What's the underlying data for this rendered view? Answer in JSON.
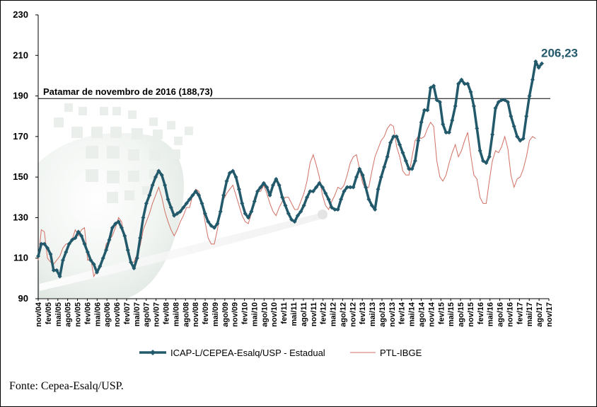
{
  "chart_data": {
    "type": "line",
    "ylim": [
      90,
      230
    ],
    "yticks": [
      90,
      110,
      130,
      150,
      170,
      190,
      210,
      230
    ],
    "x_tick_labels": [
      "nov/04",
      "fev/05",
      "mai/05",
      "ago/05",
      "nov/05",
      "fev/06",
      "mai/06",
      "ago/06",
      "nov/06",
      "fev/07",
      "mai/07",
      "ago/07",
      "nov/07",
      "fev/08",
      "mai/08",
      "ago/08",
      "nov/08",
      "fev/09",
      "mai/09",
      "ago/09",
      "nov/09",
      "fev/10",
      "mai/10",
      "ago/10",
      "nov/10",
      "fev/11",
      "mai/11",
      "ago/11",
      "nov/11",
      "fev/12",
      "mai/12",
      "ago/12",
      "nov/12",
      "fev/13",
      "mai/13",
      "ago/13",
      "nov/13",
      "fev/14",
      "mai/14",
      "ago/14",
      "nov/14",
      "fev/15",
      "mai/15",
      "ago/15",
      "nov/15",
      "fev/16",
      "mai/16",
      "ago/16",
      "nov/16",
      "fev/17",
      "mai/17",
      "ago/17",
      "nov/17"
    ],
    "reference_line": {
      "label": "Patamar de novembro de 2016 (188,73)",
      "value": 188.73
    },
    "end_label": "206,23",
    "grid": false,
    "legend_position": "bottom",
    "series": [
      {
        "name": "ICAP-L/CEPEA-Esalq/USP - Estadual",
        "color": "#22596b",
        "values": [
          111,
          117,
          117,
          115,
          112,
          104,
          104,
          101,
          109,
          113,
          117,
          119,
          120,
          123,
          121,
          117,
          113,
          109,
          107,
          103,
          106,
          110,
          114,
          119,
          125,
          127,
          128,
          125,
          121,
          114,
          108,
          105,
          110,
          120,
          130,
          137,
          141,
          146,
          150,
          153,
          151,
          146,
          139,
          135,
          131,
          132,
          133,
          135,
          137,
          139,
          141,
          143,
          141,
          137,
          132,
          128,
          126,
          125,
          127,
          133,
          141,
          148,
          152,
          153,
          150,
          144,
          137,
          132,
          130,
          133,
          138,
          143,
          145,
          147,
          145,
          141,
          146,
          149,
          146,
          140,
          136,
          132,
          129,
          128,
          131,
          133,
          136,
          140,
          143,
          143,
          145,
          147,
          145,
          142,
          139,
          135,
          134,
          134,
          139,
          143,
          145,
          145,
          145,
          150,
          154,
          151,
          145,
          139,
          136,
          134,
          144,
          150,
          155,
          160,
          167,
          170,
          170,
          166,
          162,
          158,
          154,
          154,
          158,
          168,
          177,
          183,
          183,
          194,
          195,
          188,
          187,
          176,
          172,
          172,
          178,
          185,
          196,
          198,
          196,
          196,
          192,
          185,
          174,
          163,
          158,
          157,
          160,
          171,
          184,
          187,
          188,
          188,
          187,
          180,
          175,
          170,
          168,
          169,
          180,
          190,
          198,
          207,
          204,
          206
        ]
      },
      {
        "name": "PTL-IBGE",
        "color": "#d07064",
        "values": [
          109,
          124,
          123,
          110,
          108,
          107,
          109,
          111,
          115,
          117,
          117,
          119,
          124,
          121,
          124,
          125,
          109,
          110,
          101,
          104,
          105,
          109,
          117,
          119,
          121,
          125,
          130,
          128,
          119,
          112,
          108,
          108,
          112,
          116,
          124,
          128,
          132,
          137,
          141,
          145,
          140,
          133,
          128,
          124,
          121,
          124,
          128,
          131,
          135,
          135,
          141,
          144,
          143,
          137,
          128,
          120,
          117,
          117,
          124,
          133,
          139,
          142,
          144,
          146,
          141,
          136,
          131,
          128,
          127,
          132,
          140,
          143,
          143,
          146,
          142,
          137,
          133,
          131,
          135,
          138,
          140,
          140,
          137,
          134,
          134,
          138,
          142,
          148,
          157,
          161,
          156,
          150,
          141,
          136,
          134,
          138,
          141,
          145,
          144,
          146,
          151,
          157,
          160,
          161,
          154,
          147,
          144,
          145,
          153,
          160,
          164,
          168,
          170,
          174,
          176,
          175,
          165,
          160,
          153,
          151,
          151,
          160,
          168,
          170,
          169,
          170,
          174,
          177,
          175,
          158,
          150,
          148,
          151,
          157,
          162,
          166,
          160,
          163,
          168,
          172,
          161,
          151,
          149,
          140,
          137,
          137,
          148,
          158,
          163,
          162,
          165,
          170,
          164,
          151,
          145,
          149,
          150,
          154,
          160,
          168,
          170,
          169
        ]
      }
    ]
  },
  "source": "Fonte: Cepea-Esalq/USP."
}
